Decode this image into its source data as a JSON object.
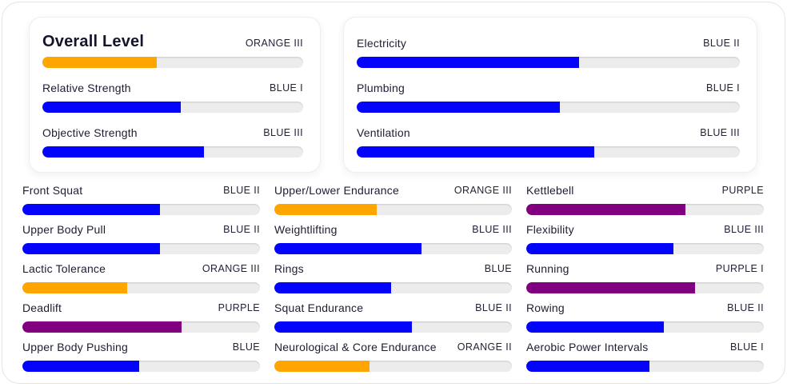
{
  "colors": {
    "orange": "#FFA500",
    "blue": "#0404FA",
    "purple": "#800080",
    "track": "#ECECEC"
  },
  "summary_cards": [
    {
      "rows": [
        {
          "label": "Overall Level",
          "level": "ORANGE III",
          "color": "orange",
          "percent": 44
        },
        {
          "label": "Relative Strength",
          "level": "BLUE I",
          "color": "blue",
          "percent": 53
        },
        {
          "label": "Objective Strength",
          "level": "BLUE III",
          "color": "blue",
          "percent": 62
        }
      ]
    },
    {
      "rows": [
        {
          "label": "Electricity",
          "level": "BLUE II",
          "color": "blue",
          "percent": 58
        },
        {
          "label": "Plumbing",
          "level": "BLUE I",
          "color": "blue",
          "percent": 53
        },
        {
          "label": "Ventilation",
          "level": "BLUE III",
          "color": "blue",
          "percent": 62
        }
      ]
    }
  ],
  "skill_columns": [
    [
      {
        "label": "Front Squat",
        "level": "BLUE II",
        "color": "blue",
        "percent": 58
      },
      {
        "label": "Upper Body Pull",
        "level": "BLUE II",
        "color": "blue",
        "percent": 58
      },
      {
        "label": "Lactic Tolerance",
        "level": "ORANGE III",
        "color": "orange",
        "percent": 44
      },
      {
        "label": "Deadlift",
        "level": "PURPLE",
        "color": "purple",
        "percent": 67
      },
      {
        "label": "Upper Body Pushing",
        "level": "BLUE",
        "color": "blue",
        "percent": 49
      }
    ],
    [
      {
        "label": "Upper/Lower Endurance",
        "level": "ORANGE III",
        "color": "orange",
        "percent": 43
      },
      {
        "label": "Weightlifting",
        "level": "BLUE III",
        "color": "blue",
        "percent": 62
      },
      {
        "label": "Rings",
        "level": "BLUE",
        "color": "blue",
        "percent": 49
      },
      {
        "label": "Squat Endurance",
        "level": "BLUE II",
        "color": "blue",
        "percent": 58
      },
      {
        "label": "Neurological & Core Endurance",
        "level": "ORANGE II",
        "color": "orange",
        "percent": 40
      }
    ],
    [
      {
        "label": "Kettlebell",
        "level": "PURPLE",
        "color": "purple",
        "percent": 67
      },
      {
        "label": "Flexibility",
        "level": "BLUE III",
        "color": "blue",
        "percent": 62
      },
      {
        "label": "Running",
        "level": "PURPLE I",
        "color": "purple",
        "percent": 71
      },
      {
        "label": "Rowing",
        "level": "BLUE II",
        "color": "blue",
        "percent": 58
      },
      {
        "label": "Aerobic Power Intervals",
        "level": "BLUE I",
        "color": "blue",
        "percent": 52
      }
    ]
  ]
}
